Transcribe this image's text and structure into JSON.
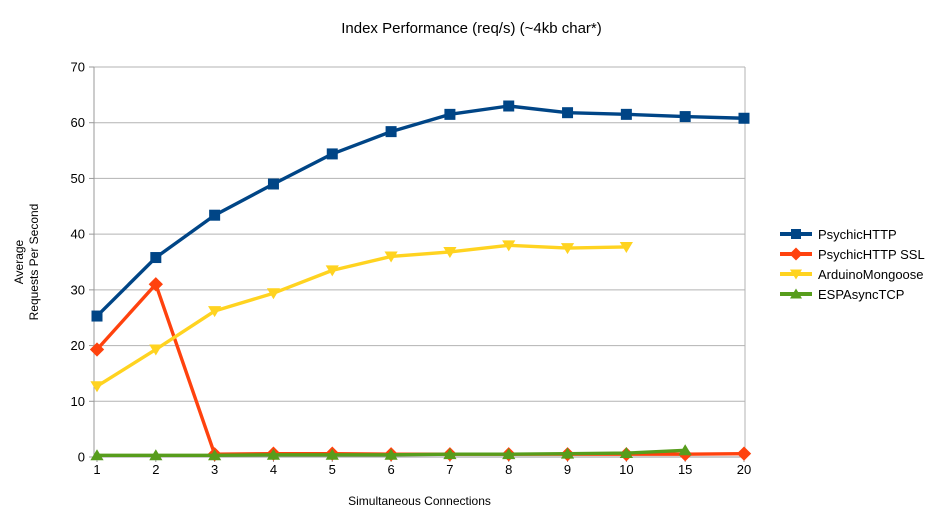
{
  "chart_data": {
    "type": "line",
    "title": "Index Performance (req/s) (~4kb char*)",
    "xlabel": "Simultaneous Connections",
    "ylabel_lines": [
      "Average",
      "Requests Per Second"
    ],
    "categories": [
      "1",
      "2",
      "3",
      "4",
      "5",
      "6",
      "7",
      "8",
      "9",
      "10",
      "15",
      "20"
    ],
    "ylim": [
      0,
      70
    ],
    "y_ticks": [
      0,
      10,
      20,
      30,
      40,
      50,
      60,
      70
    ],
    "grid": "horizontal-only",
    "legend_position": "right",
    "colors": {
      "grid": "#b3b3b3",
      "axis": "#999999",
      "text": "#000000",
      "background": "#ffffff"
    },
    "series": [
      {
        "name": "PsychicHTTP",
        "color": "#004586",
        "marker": "square",
        "values": [
          25.3,
          35.8,
          43.4,
          49.0,
          54.4,
          58.4,
          61.5,
          63.0,
          61.8,
          61.5,
          61.1,
          60.8
        ]
      },
      {
        "name": "PsychicHTTP SSL",
        "color": "#ff420e",
        "marker": "diamond",
        "values": [
          19.3,
          31.0,
          0.5,
          0.6,
          0.6,
          0.5,
          0.5,
          0.5,
          0.5,
          0.5,
          0.5,
          0.6
        ]
      },
      {
        "name": "ArduinoMongoose",
        "color": "#ffd320",
        "marker": "triangle-down",
        "values": [
          12.7,
          19.3,
          26.2,
          29.4,
          33.5,
          36.0,
          36.8,
          38.0,
          37.5,
          37.7
        ]
      },
      {
        "name": "ESPAsyncTCP",
        "color": "#579d1c",
        "marker": "triangle-up",
        "values": [
          0.3,
          0.3,
          0.3,
          0.4,
          0.4,
          0.4,
          0.5,
          0.5,
          0.6,
          0.7,
          1.2
        ]
      }
    ]
  }
}
